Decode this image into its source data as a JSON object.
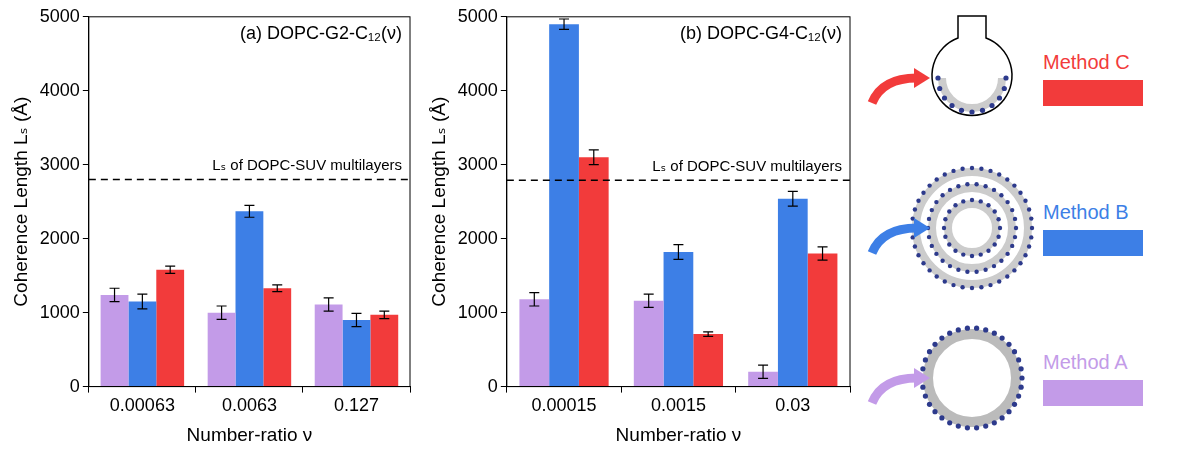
{
  "chart_data": [
    {
      "type": "bar",
      "title": "(a) DOPC-G2-C₁₂(ν)",
      "x_label": "Number-ratio ν",
      "y_label": "Coherence Length Lₛ (Å)",
      "categories": [
        "0.00063",
        "0.0063",
        "0.127"
      ],
      "series": [
        {
          "name": "Method A",
          "color": "#c39be8",
          "values": [
            1240,
            1000,
            1110
          ],
          "errors": [
            90,
            90,
            90
          ]
        },
        {
          "name": "Method B",
          "color": "#3d7fe6",
          "values": [
            1150,
            2370,
            900
          ],
          "errors": [
            100,
            80,
            90
          ]
        },
        {
          "name": "Method C",
          "color": "#f23b3b",
          "values": [
            1580,
            1330,
            970
          ],
          "errors": [
            50,
            45,
            50
          ]
        }
      ],
      "ylim": [
        0,
        5000
      ],
      "yticks": [
        0,
        1000,
        2000,
        3000,
        4000,
        5000
      ],
      "grid": false,
      "legend": "right",
      "annotations": [
        {
          "text": "Lₛ of DOPC-SUV multilayers",
          "y": 2800,
          "line_style": "dashed"
        }
      ]
    },
    {
      "type": "bar",
      "title": "(b) DOPC-G4-C₁₂(ν)",
      "x_label": "Number-ratio ν",
      "y_label": "Coherence Length Lₛ (Å)",
      "categories": [
        "0.00015",
        "0.0015",
        "0.03"
      ],
      "series": [
        {
          "name": "Method A",
          "color": "#c39be8",
          "values": [
            1180,
            1160,
            200
          ],
          "errors": [
            90,
            90,
            90
          ]
        },
        {
          "name": "Method B",
          "color": "#3d7fe6",
          "values": [
            4900,
            1820,
            2540
          ],
          "errors": [
            70,
            100,
            100
          ]
        },
        {
          "name": "Method C",
          "color": "#f23b3b",
          "values": [
            3100,
            710,
            1800
          ],
          "errors": [
            100,
            30,
            90
          ]
        }
      ],
      "ylim": [
        0,
        5000
      ],
      "yticks": [
        0,
        1000,
        2000,
        3000,
        4000,
        5000
      ],
      "grid": false,
      "legend": "right",
      "annotations": [
        {
          "text": "Lₛ of DOPC-SUV multilayers",
          "y": 2790,
          "line_style": "dashed"
        }
      ]
    }
  ]
}
